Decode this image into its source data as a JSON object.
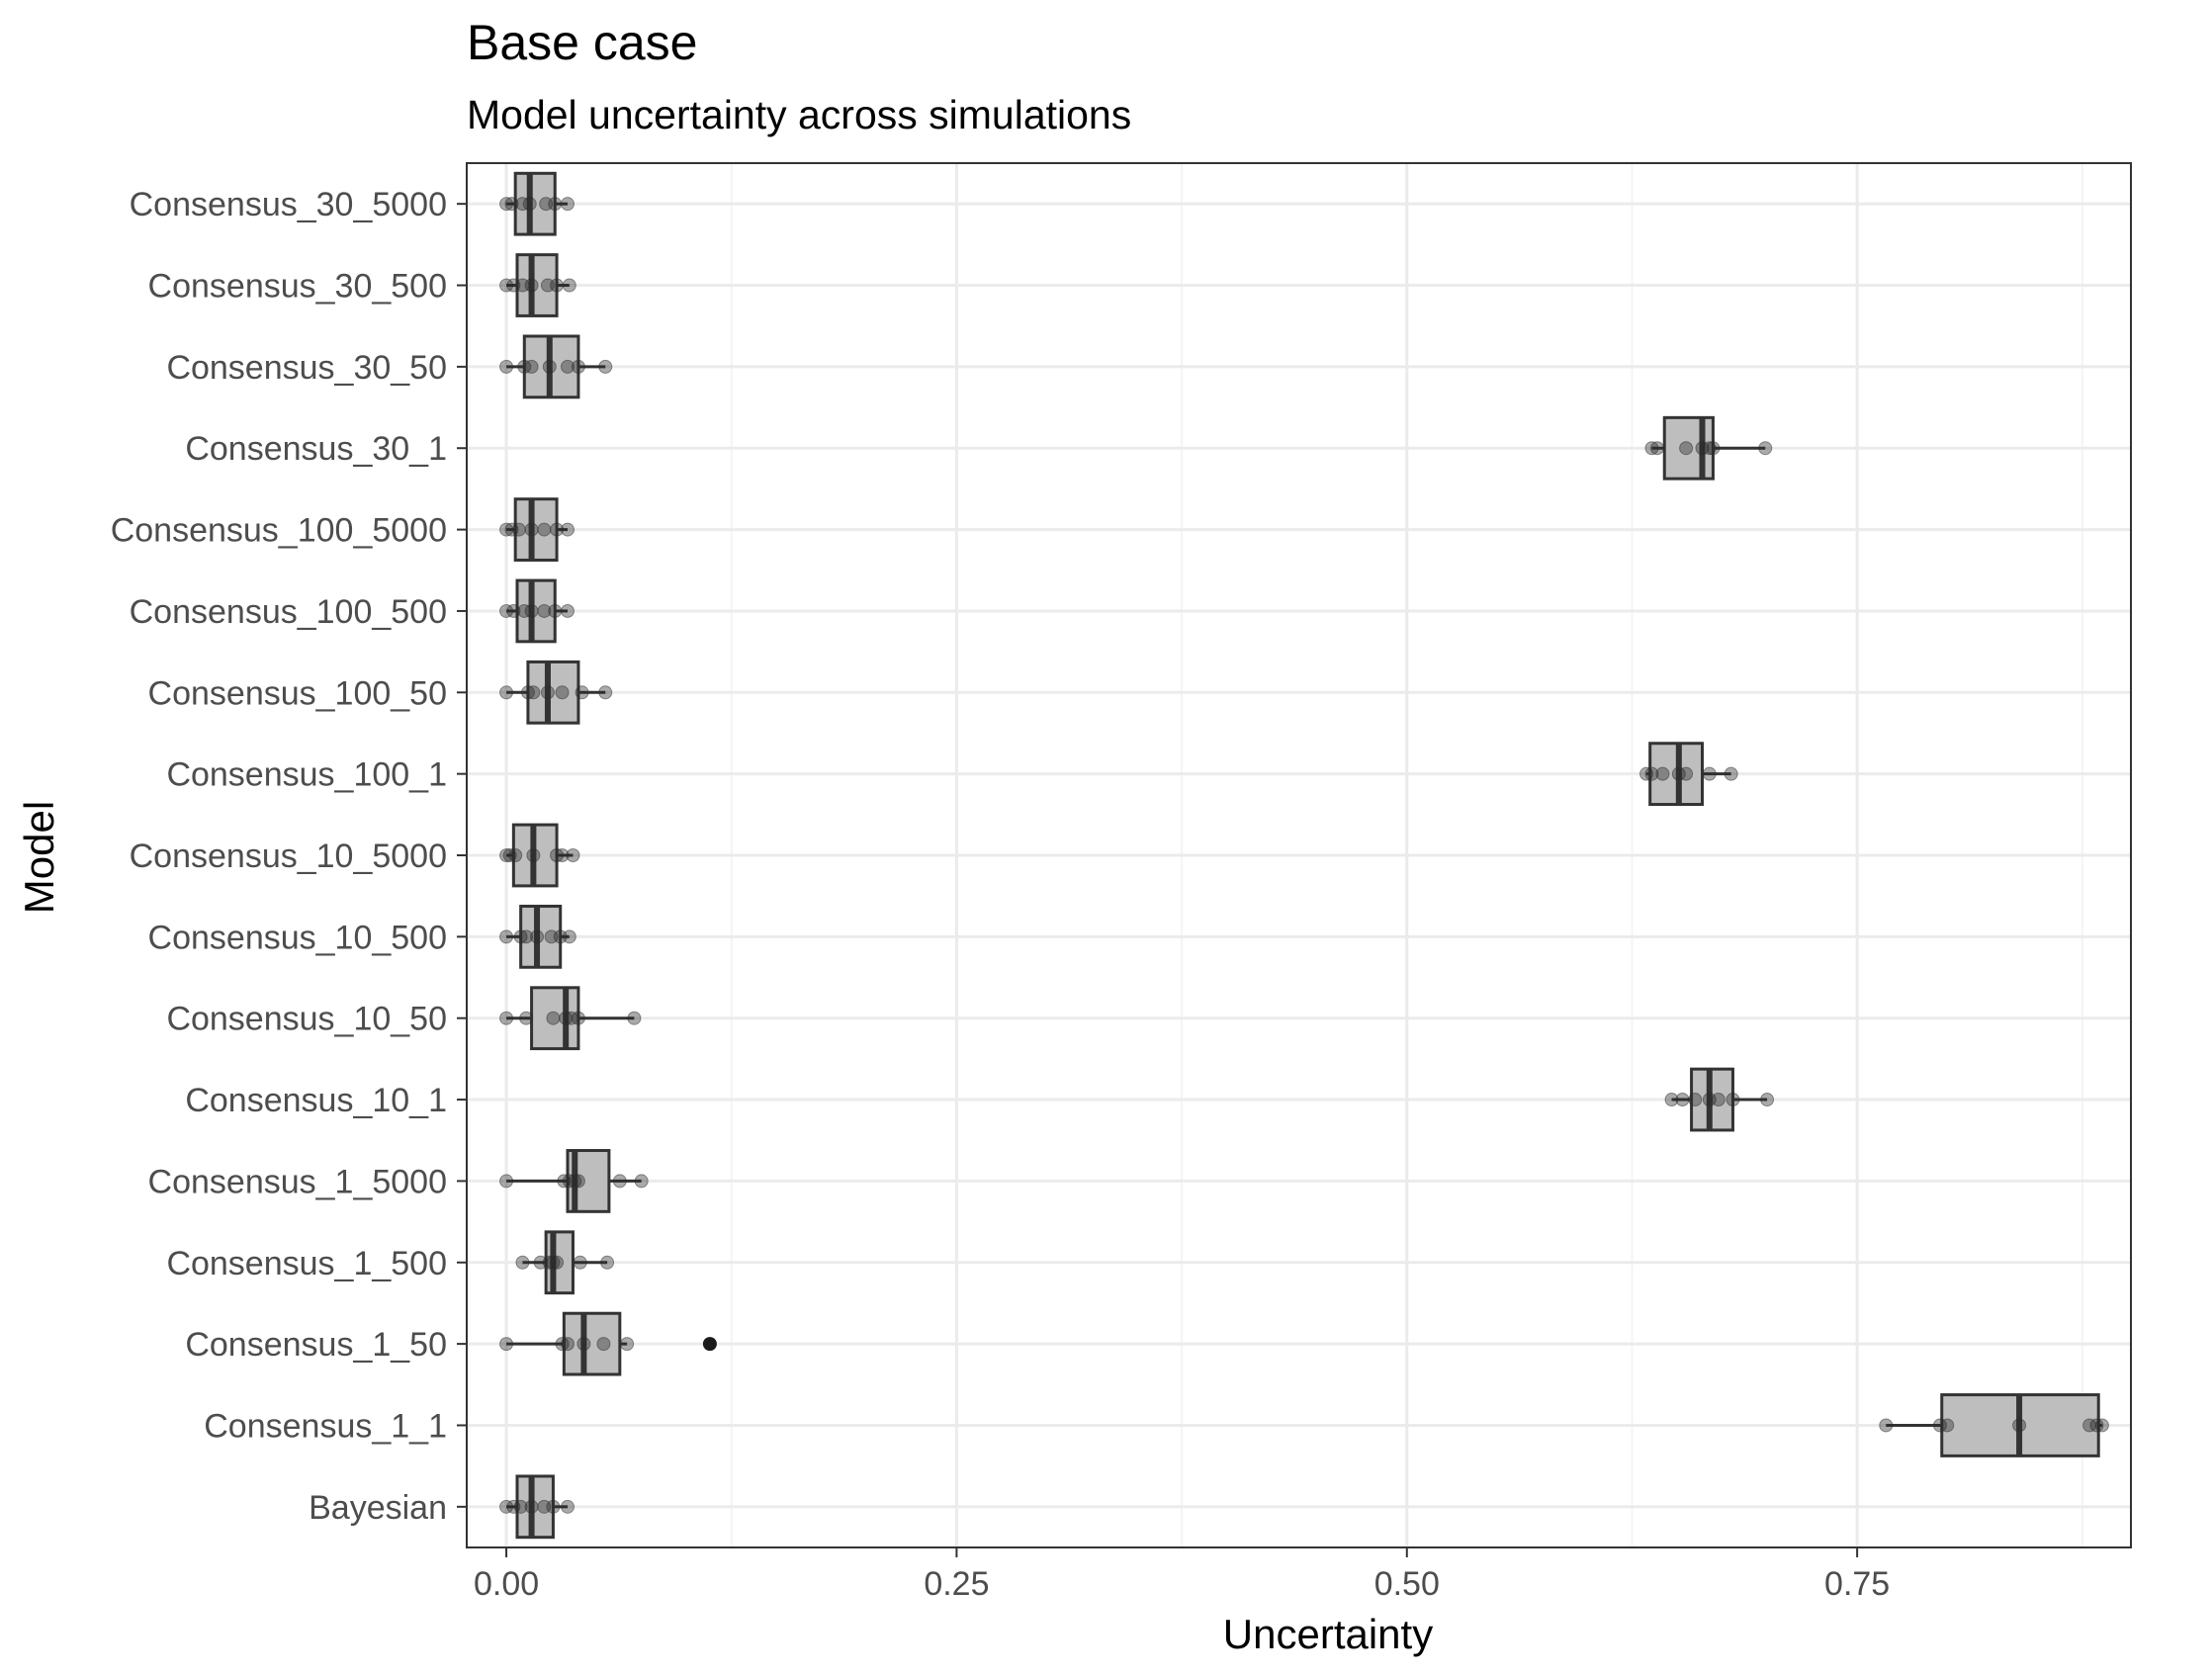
{
  "chart_data": {
    "type": "boxplot",
    "orientation": "horizontal",
    "title": "Base case",
    "subtitle": "Model uncertainty across simulations",
    "xlabel": "Uncertainty",
    "ylabel": "Model",
    "xlim": [
      -0.022,
      0.902
    ],
    "x_ticks": [
      0.0,
      0.25,
      0.5,
      0.75
    ],
    "x_tick_labels": [
      "0.00",
      "0.25",
      "0.50",
      "0.75"
    ],
    "grid": true,
    "legend": "none",
    "colors": {
      "box_fill": "#bebebe",
      "box_stroke": "#333333",
      "point": "#2b2b2b",
      "grid_major": "#ebebeb",
      "grid_minor": "#f4f4f4",
      "panel_border": "#333333"
    },
    "categories": [
      "Consensus_30_5000",
      "Consensus_30_500",
      "Consensus_30_50",
      "Consensus_30_1",
      "Consensus_100_5000",
      "Consensus_100_500",
      "Consensus_100_50",
      "Consensus_100_1",
      "Consensus_10_5000",
      "Consensus_10_500",
      "Consensus_10_50",
      "Consensus_10_1",
      "Consensus_1_5000",
      "Consensus_1_500",
      "Consensus_1_50",
      "Consensus_1_1",
      "Bayesian"
    ],
    "boxes": [
      {
        "min": 0.0,
        "q1": 0.005,
        "median": 0.013,
        "q3": 0.027,
        "max": 0.034,
        "outliers": [],
        "points": [
          0.0,
          0.003,
          0.009,
          0.013,
          0.022,
          0.027,
          0.034
        ]
      },
      {
        "min": 0.0,
        "q1": 0.006,
        "median": 0.014,
        "q3": 0.028,
        "max": 0.035,
        "outliers": [],
        "points": [
          0.0,
          0.004,
          0.009,
          0.014,
          0.023,
          0.028,
          0.035
        ]
      },
      {
        "min": 0.0,
        "q1": 0.01,
        "median": 0.024,
        "q3": 0.04,
        "max": 0.055,
        "outliers": [],
        "points": [
          0.0,
          0.01,
          0.014,
          0.024,
          0.034,
          0.04,
          0.055
        ]
      },
      {
        "min": 0.636,
        "q1": 0.643,
        "median": 0.664,
        "q3": 0.67,
        "max": 0.699,
        "outliers": [],
        "points": [
          0.636,
          0.639,
          0.655,
          0.664,
          0.668,
          0.67,
          0.699
        ]
      },
      {
        "min": 0.0,
        "q1": 0.005,
        "median": 0.014,
        "q3": 0.028,
        "max": 0.034,
        "outliers": [],
        "points": [
          0.0,
          0.003,
          0.007,
          0.014,
          0.021,
          0.028,
          0.034
        ]
      },
      {
        "min": 0.0,
        "q1": 0.006,
        "median": 0.014,
        "q3": 0.027,
        "max": 0.034,
        "outliers": [],
        "points": [
          0.0,
          0.004,
          0.01,
          0.014,
          0.021,
          0.027,
          0.034
        ]
      },
      {
        "min": 0.0,
        "q1": 0.012,
        "median": 0.023,
        "q3": 0.04,
        "max": 0.055,
        "outliers": [],
        "points": [
          0.0,
          0.012,
          0.015,
          0.023,
          0.031,
          0.042,
          0.055
        ]
      },
      {
        "min": 0.633,
        "q1": 0.635,
        "median": 0.651,
        "q3": 0.664,
        "max": 0.68,
        "outliers": [],
        "points": [
          0.633,
          0.636,
          0.642,
          0.651,
          0.655,
          0.668,
          0.68
        ]
      },
      {
        "min": 0.0,
        "q1": 0.004,
        "median": 0.015,
        "q3": 0.028,
        "max": 0.037,
        "outliers": [],
        "points": [
          0.0,
          0.002,
          0.005,
          0.015,
          0.028,
          0.031,
          0.037
        ]
      },
      {
        "min": 0.0,
        "q1": 0.008,
        "median": 0.017,
        "q3": 0.03,
        "max": 0.035,
        "outliers": [],
        "points": [
          0.0,
          0.008,
          0.011,
          0.017,
          0.025,
          0.03,
          0.035
        ]
      },
      {
        "min": 0.0,
        "q1": 0.014,
        "median": 0.033,
        "q3": 0.04,
        "max": 0.071,
        "outliers": [],
        "points": [
          0.0,
          0.011,
          0.026,
          0.033,
          0.036,
          0.04,
          0.071
        ]
      },
      {
        "min": 0.647,
        "q1": 0.658,
        "median": 0.668,
        "q3": 0.681,
        "max": 0.7,
        "outliers": [],
        "points": [
          0.647,
          0.653,
          0.66,
          0.668,
          0.673,
          0.681,
          0.7
        ]
      },
      {
        "min": 0.0,
        "q1": 0.034,
        "median": 0.038,
        "q3": 0.057,
        "max": 0.075,
        "outliers": [],
        "points": [
          0.0,
          0.032,
          0.035,
          0.038,
          0.04,
          0.063,
          0.075
        ]
      },
      {
        "min": 0.009,
        "q1": 0.022,
        "median": 0.026,
        "q3": 0.037,
        "max": 0.056,
        "outliers": [],
        "points": [
          0.009,
          0.019,
          0.024,
          0.026,
          0.028,
          0.041,
          0.056
        ]
      },
      {
        "min": 0.0,
        "q1": 0.032,
        "median": 0.043,
        "q3": 0.063,
        "max": 0.067,
        "outliers": [
          0.113
        ],
        "points": [
          0.0,
          0.031,
          0.034,
          0.043,
          0.054,
          0.067
        ]
      },
      {
        "min": 0.766,
        "q1": 0.797,
        "median": 0.84,
        "q3": 0.884,
        "max": 0.886,
        "outliers": [],
        "points": [
          0.766,
          0.796,
          0.8,
          0.84,
          0.879,
          0.883,
          0.886
        ]
      },
      {
        "min": 0.0,
        "q1": 0.006,
        "median": 0.014,
        "q3": 0.026,
        "max": 0.034,
        "outliers": [],
        "points": [
          0.0,
          0.004,
          0.008,
          0.014,
          0.021,
          0.026,
          0.034
        ]
      }
    ]
  }
}
